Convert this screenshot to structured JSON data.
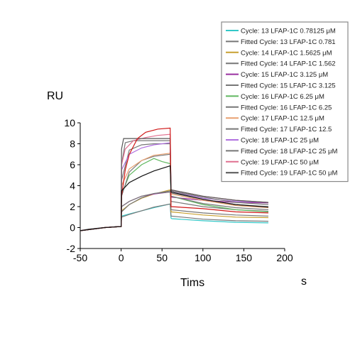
{
  "chart_data": {
    "type": "line",
    "ylabel": "RU",
    "xlabel": "Tims",
    "xunit": "s",
    "xlim": [
      -50,
      200
    ],
    "ylim": [
      -2,
      10
    ],
    "xticks": [
      -50,
      0,
      50,
      100,
      150,
      200
    ],
    "yticks": [
      -2,
      0,
      2,
      4,
      6,
      8,
      10
    ],
    "legend_position": "top-right",
    "series": [
      {
        "name": "Cycle: 13 LFAP-1C 0.78125 μM",
        "color": "#33c8c8",
        "points": [
          [
            -50,
            -0.3
          ],
          [
            -40,
            -0.15
          ],
          [
            -20,
            0.0
          ],
          [
            0,
            0.1
          ],
          [
            0.5,
            1.1
          ],
          [
            10,
            1.3
          ],
          [
            25,
            1.6
          ],
          [
            40,
            1.9
          ],
          [
            60,
            2.25
          ],
          [
            61,
            0.9
          ],
          [
            62,
            0.85
          ],
          [
            100,
            0.65
          ],
          [
            140,
            0.5
          ],
          [
            180,
            0.45
          ]
        ]
      },
      {
        "name": "Fitted Cycle: 13 LFAP-1C 0.781",
        "color": "#777777",
        "points": [
          [
            -50,
            -0.3
          ],
          [
            -40,
            -0.15
          ],
          [
            -20,
            0.0
          ],
          [
            0,
            0.1
          ],
          [
            0.5,
            1.0
          ],
          [
            10,
            1.25
          ],
          [
            25,
            1.6
          ],
          [
            40,
            1.95
          ],
          [
            60,
            2.25
          ],
          [
            61,
            1.1
          ],
          [
            100,
            0.8
          ],
          [
            140,
            0.65
          ],
          [
            180,
            0.6
          ]
        ]
      },
      {
        "name": "Cycle: 14 LFAP-1C 1.5625 μM",
        "color": "#c8a030",
        "points": [
          [
            -50,
            -0.3
          ],
          [
            -20,
            0.0
          ],
          [
            0,
            0.1
          ],
          [
            0.5,
            1.6
          ],
          [
            10,
            2.2
          ],
          [
            25,
            2.8
          ],
          [
            40,
            3.2
          ],
          [
            60,
            3.6
          ],
          [
            61,
            1.5
          ],
          [
            100,
            1.2
          ],
          [
            140,
            1.0
          ],
          [
            180,
            0.95
          ]
        ]
      },
      {
        "name": "Fitted Cycle: 14 LFAP-1C 1.562",
        "color": "#777777",
        "points": [
          [
            -50,
            -0.3
          ],
          [
            -20,
            0.0
          ],
          [
            0,
            0.1
          ],
          [
            0.5,
            1.5
          ],
          [
            10,
            2.2
          ],
          [
            25,
            2.85
          ],
          [
            40,
            3.25
          ],
          [
            60,
            3.5
          ],
          [
            61,
            1.7
          ],
          [
            100,
            1.4
          ],
          [
            140,
            1.2
          ],
          [
            180,
            1.1
          ]
        ]
      },
      {
        "name": "Cycle: 15 LFAP-1C 3.125 μM",
        "color": "#9a30a0",
        "points": [
          [
            -50,
            -0.3
          ],
          [
            -20,
            0.0
          ],
          [
            0,
            0.1
          ],
          [
            0.5,
            2.0
          ],
          [
            10,
            2.5
          ],
          [
            25,
            3.0
          ],
          [
            40,
            3.2
          ],
          [
            60,
            3.4
          ],
          [
            61,
            2.9
          ],
          [
            100,
            2.6
          ],
          [
            140,
            2.4
          ],
          [
            180,
            2.35
          ]
        ]
      },
      {
        "name": "Fitted Cycle: 15 LFAP-1C 3.125",
        "color": "#777777",
        "points": [
          [
            -50,
            -0.3
          ],
          [
            -20,
            0.0
          ],
          [
            0,
            0.1
          ],
          [
            0.5,
            2.0
          ],
          [
            10,
            2.5
          ],
          [
            25,
            3.0
          ],
          [
            40,
            3.25
          ],
          [
            60,
            3.4
          ],
          [
            61,
            2.5
          ],
          [
            100,
            2.0
          ],
          [
            140,
            1.7
          ],
          [
            180,
            1.55
          ]
        ]
      },
      {
        "name": "Cycle: 16 LFAP-1C 6.25 μM",
        "color": "#60b860",
        "points": [
          [
            -50,
            -0.3
          ],
          [
            -20,
            0.0
          ],
          [
            0,
            0.1
          ],
          [
            0.5,
            3.2
          ],
          [
            10,
            5.0
          ],
          [
            25,
            6.0
          ],
          [
            40,
            6.6
          ],
          [
            50,
            6.3
          ],
          [
            60,
            6.1
          ],
          [
            61,
            3.0
          ],
          [
            100,
            2.2
          ],
          [
            140,
            1.7
          ],
          [
            180,
            1.5
          ]
        ]
      },
      {
        "name": "Fitted Cycle: 16 LFAP-1C 6.25",
        "color": "#777777",
        "points": [
          [
            -50,
            -0.3
          ],
          [
            -20,
            0.0
          ],
          [
            0,
            0.1
          ],
          [
            0.5,
            3.0
          ],
          [
            10,
            5.3
          ],
          [
            25,
            6.4
          ],
          [
            40,
            6.8
          ],
          [
            60,
            7.0
          ],
          [
            61,
            3.0
          ],
          [
            100,
            2.3
          ],
          [
            140,
            1.9
          ],
          [
            180,
            1.7
          ]
        ]
      },
      {
        "name": "Cycle: 17 LFAP-1C 12.5 μM",
        "color": "#e8a070",
        "points": [
          [
            -50,
            -0.3
          ],
          [
            -20,
            0.0
          ],
          [
            0,
            0.1
          ],
          [
            0.5,
            4.0
          ],
          [
            10,
            5.6
          ],
          [
            25,
            6.4
          ],
          [
            40,
            6.9
          ],
          [
            60,
            7.1
          ],
          [
            61,
            3.2
          ],
          [
            100,
            2.6
          ],
          [
            140,
            2.1
          ],
          [
            180,
            1.9
          ]
        ]
      },
      {
        "name": "Fitted Cycle: 17 LFAP-1C 12.5",
        "color": "#777777",
        "points": [
          [
            -50,
            -0.3
          ],
          [
            -20,
            0.0
          ],
          [
            0,
            0.1
          ],
          [
            0.5,
            4.5
          ],
          [
            10,
            7.4
          ],
          [
            25,
            7.9
          ],
          [
            40,
            8.0
          ],
          [
            60,
            8.0
          ],
          [
            61,
            3.3
          ],
          [
            100,
            2.7
          ],
          [
            140,
            2.2
          ],
          [
            180,
            2.0
          ]
        ]
      },
      {
        "name": "Cycle: 18 LFAP-1C 25 μM",
        "color": "#b070e0",
        "points": [
          [
            -50,
            -0.3
          ],
          [
            -20,
            0.0
          ],
          [
            0,
            0.1
          ],
          [
            0.5,
            5.5
          ],
          [
            10,
            7.0
          ],
          [
            25,
            7.6
          ],
          [
            40,
            7.9
          ],
          [
            60,
            8.1
          ],
          [
            61,
            3.5
          ],
          [
            100,
            2.8
          ],
          [
            140,
            2.5
          ],
          [
            180,
            2.4
          ]
        ]
      },
      {
        "name": "Fitted Cycle: 18 LFAP-1C 25 μM",
        "color": "#777777",
        "points": [
          [
            -50,
            -0.3
          ],
          [
            -20,
            0.0
          ],
          [
            0,
            0.1
          ],
          [
            0.5,
            6.0
          ],
          [
            5,
            8.1
          ],
          [
            15,
            8.3
          ],
          [
            30,
            8.3
          ],
          [
            60,
            8.3
          ],
          [
            61,
            3.5
          ],
          [
            100,
            2.9
          ],
          [
            140,
            2.4
          ],
          [
            180,
            2.2
          ]
        ]
      },
      {
        "name": "Cycle: 19 LFAP-1C 50 μM",
        "color": "#e07090",
        "points": [
          [
            -50,
            -0.3
          ],
          [
            -20,
            0.0
          ],
          [
            0,
            0.1
          ],
          [
            0.5,
            6.0
          ],
          [
            5,
            7.5
          ],
          [
            15,
            8.3
          ],
          [
            30,
            8.6
          ],
          [
            45,
            8.8
          ],
          [
            60,
            8.9
          ],
          [
            61,
            3.6
          ],
          [
            100,
            3.0
          ],
          [
            140,
            2.6
          ],
          [
            180,
            2.4
          ]
        ]
      },
      {
        "name": "Fitted Cycle: 19 LFAP-1C 50 μM",
        "color": "#555555",
        "points": [
          [
            -50,
            -0.3
          ],
          [
            -20,
            0.0
          ],
          [
            0,
            0.1
          ],
          [
            0.5,
            7.5
          ],
          [
            3,
            8.5
          ],
          [
            10,
            8.5
          ],
          [
            30,
            8.5
          ],
          [
            60,
            8.5
          ],
          [
            61,
            3.6
          ],
          [
            100,
            3.0
          ],
          [
            140,
            2.6
          ],
          [
            180,
            2.4
          ]
        ]
      },
      {
        "name": "",
        "color": "#d01818",
        "points": [
          [
            -50,
            -0.3
          ],
          [
            -20,
            0.0
          ],
          [
            0,
            0.1
          ],
          [
            0.5,
            3.0
          ],
          [
            5,
            5.5
          ],
          [
            10,
            7.0
          ],
          [
            20,
            8.5
          ],
          [
            30,
            9.1
          ],
          [
            45,
            9.4
          ],
          [
            60,
            9.5
          ],
          [
            61,
            2.0
          ],
          [
            100,
            1.8
          ],
          [
            140,
            1.5
          ],
          [
            180,
            1.4
          ]
        ]
      },
      {
        "name": "",
        "color": "#111111",
        "points": [
          [
            -50,
            -0.3
          ],
          [
            -20,
            0.0
          ],
          [
            0,
            0.1
          ],
          [
            0.5,
            3.5
          ],
          [
            10,
            4.3
          ],
          [
            25,
            4.9
          ],
          [
            40,
            5.4
          ],
          [
            60,
            5.9
          ],
          [
            61,
            3.4
          ],
          [
            100,
            2.7
          ],
          [
            140,
            2.2
          ],
          [
            180,
            1.95
          ]
        ]
      }
    ]
  }
}
